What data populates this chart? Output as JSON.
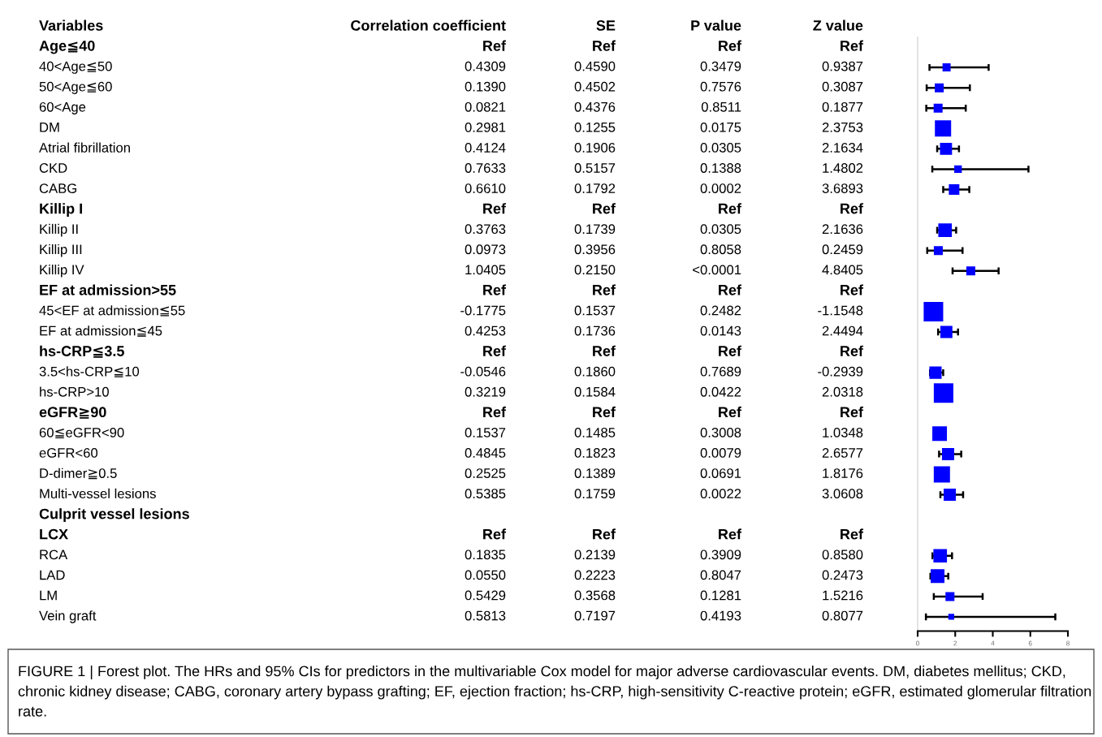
{
  "chart_data": [
    {
      "type": "other",
      "ylabel": "Variables",
      "categories": [
        "Age≦40",
        "40<Age≦50",
        "50<Age≦60",
        "60<Age",
        "DM",
        "Atrial fibrillation",
        "CKD",
        "CABG",
        "Killip I",
        "Killip II",
        "Killip III",
        "Killip IV",
        "EF at admission>55",
        "45<EF at admission≦55",
        "EF at admission≦45",
        "hs-CRP≦3.5",
        "3.5<hs-CRP≦10",
        "hs-CRP>10",
        "eGFR≧90",
        "60≦eGFR<90",
        "eGFR<60",
        "D-dimer≧0.5",
        "Multi-vessel lesions",
        "Culprit vessel lesions",
        "LCX",
        "RCA",
        "LAD",
        "LM",
        "Vein graft"
      ],
      "series": [
        {
          "name": "Correlation coefficient",
          "values": [
            null,
            0.4309,
            0.139,
            0.0821,
            0.2981,
            0.4124,
            0.7633,
            0.661,
            null,
            0.3763,
            0.0973,
            1.0405,
            null,
            -0.1775,
            0.4253,
            null,
            -0.0546,
            0.3219,
            null,
            0.1537,
            0.4845,
            0.2525,
            0.5385,
            null,
            null,
            0.1835,
            0.055,
            0.5429,
            0.5813
          ],
          "value_labels": [
            "Ref",
            "0.4309",
            "0.1390",
            "0.0821",
            "0.2981",
            "0.4124",
            "0.7633",
            "0.6610",
            "Ref",
            "0.3763",
            "0.0973",
            "1.0405",
            "Ref",
            "-0.1775",
            "0.4253",
            "Ref",
            "-0.0546",
            "0.3219",
            "Ref",
            "0.1537",
            "0.4845",
            "0.2525",
            "0.5385",
            null,
            "Ref",
            "0.1835",
            "0.0550",
            "0.5429",
            "0.5813"
          ]
        },
        {
          "name": "SE",
          "values": [
            null,
            0.459,
            0.4502,
            0.4376,
            0.1255,
            0.1906,
            0.5157,
            0.1792,
            null,
            0.1739,
            0.3956,
            0.215,
            null,
            0.1537,
            0.1736,
            null,
            0.186,
            0.1584,
            null,
            0.1485,
            0.1823,
            0.1389,
            0.1759,
            null,
            null,
            0.2139,
            0.2223,
            0.3568,
            0.7197
          ],
          "value_labels": [
            "Ref",
            "0.4590",
            "0.4502",
            "0.4376",
            "0.1255",
            "0.1906",
            "0.5157",
            "0.1792",
            "Ref",
            "0.1739",
            "0.3956",
            "0.2150",
            "Ref",
            "0.1537",
            "0.1736",
            "Ref",
            "0.1860",
            "0.1584",
            "Ref",
            "0.1485",
            "0.1823",
            "0.1389",
            "0.1759",
            null,
            "Ref",
            "0.2139",
            "0.2223",
            "0.3568",
            "0.7197"
          ]
        },
        {
          "name": "P value",
          "values": [
            null,
            0.3479,
            0.7576,
            0.8511,
            0.0175,
            0.0305,
            0.1388,
            0.0002,
            null,
            0.0305,
            0.8058,
            null,
            null,
            0.2482,
            0.0143,
            null,
            0.7689,
            0.0422,
            null,
            0.3008,
            0.0079,
            0.0691,
            0.0022,
            null,
            null,
            0.3909,
            0.8047,
            0.1281,
            0.4193
          ],
          "value_labels": [
            "Ref",
            "0.3479",
            "0.7576",
            "0.8511",
            "0.0175",
            "0.0305",
            "0.1388",
            "0.0002",
            "Ref",
            "0.0305",
            "0.8058",
            "<0.0001",
            "Ref",
            "0.2482",
            "0.0143",
            "Ref",
            "0.7689",
            "0.0422",
            "Ref",
            "0.3008",
            "0.0079",
            "0.0691",
            "0.0022",
            null,
            "Ref",
            "0.3909",
            "0.8047",
            "0.1281",
            "0.4193"
          ]
        },
        {
          "name": "Z value",
          "values": [
            null,
            0.9387,
            0.3087,
            0.1877,
            2.3753,
            2.1634,
            1.4802,
            3.6893,
            null,
            2.1636,
            0.2459,
            4.8405,
            null,
            -1.1548,
            2.4494,
            null,
            -0.2939,
            2.0318,
            null,
            1.0348,
            2.6577,
            1.8176,
            3.0608,
            null,
            null,
            0.858,
            0.2473,
            1.5216,
            0.8077
          ],
          "value_labels": [
            "Ref",
            "0.9387",
            "0.3087",
            "0.1877",
            "2.3753",
            "2.1634",
            "1.4802",
            "3.6893",
            "Ref",
            "2.1636",
            "0.2459",
            "4.8405",
            "Ref",
            "-1.1548",
            "2.4494",
            "Ref",
            "-0.2939",
            "2.0318",
            "Ref",
            "1.0348",
            "2.6577",
            "1.8176",
            "3.0608",
            null,
            "Ref",
            "0.8580",
            "0.2473",
            "1.5216",
            "0.8077"
          ]
        }
      ],
      "annotations": [
        "FIGURE 1 | Forest plot. The HRs and 95% CIs for predictors in the multivariable Cox model for major adverse cardiovascular events. DM, diabetes mellitus; CKD, chronic kidney disease; CABG, coronary artery bypass grafting; EF, ejection fraction; hs-CRP, high-sensitivity C-reactive protein; eGFR, estimated glomerular filtration rate."
      ]
    },
    {
      "type": "bubble",
      "orientation": "horizontal",
      "marker": "square",
      "color": "#0000ff",
      "tick_labels": "x",
      "grid": false,
      "legend": false,
      "categories": [
        null,
        null,
        null,
        null,
        null,
        null,
        null,
        null,
        null,
        null,
        null,
        null,
        null,
        null,
        null,
        null,
        null,
        null,
        null,
        null,
        null,
        null,
        null,
        null,
        null,
        null,
        null,
        null,
        null
      ],
      "values": [
        null,
        1.54,
        1.15,
        1.09,
        1.35,
        1.51,
        2.15,
        1.94,
        null,
        1.46,
        1.1,
        2.83,
        null,
        0.84,
        1.53,
        null,
        0.95,
        1.38,
        null,
        1.17,
        1.62,
        1.29,
        1.71,
        null,
        null,
        1.2,
        1.06,
        1.72,
        1.79
      ],
      "errors": [
        null,
        [
          0.63,
          3.78
        ],
        [
          0.48,
          2.78
        ],
        [
          0.46,
          2.56
        ],
        null,
        [
          1.04,
          2.2
        ],
        [
          0.78,
          5.9
        ],
        [
          1.36,
          2.75
        ],
        null,
        [
          1.04,
          2.05
        ],
        [
          0.51,
          2.39
        ],
        [
          1.86,
          4.31
        ],
        null,
        null,
        [
          1.09,
          2.15
        ],
        null,
        [
          0.66,
          1.36
        ],
        null,
        null,
        null,
        [
          1.14,
          2.32
        ],
        null,
        [
          1.21,
          2.42
        ],
        null,
        null,
        [
          0.79,
          1.83
        ],
        [
          0.68,
          1.63
        ],
        [
          0.86,
          3.46
        ],
        [
          0.44,
          7.33
        ]
      ],
      "sizes": [
        null,
        0.17,
        0.21,
        0.21,
        0.69,
        0.38,
        0.15,
        0.29,
        null,
        0.48,
        0.21,
        0.21,
        null,
        1,
        0.38,
        null,
        0.39,
        1,
        null,
        0.56,
        0.39,
        0.69,
        0.39,
        null,
        null,
        0.48,
        0.5,
        0.21,
        0.09
      ],
      "xlim": [
        0,
        8
      ],
      "xticks": [
        0,
        2,
        4,
        6,
        8
      ]
    }
  ]
}
